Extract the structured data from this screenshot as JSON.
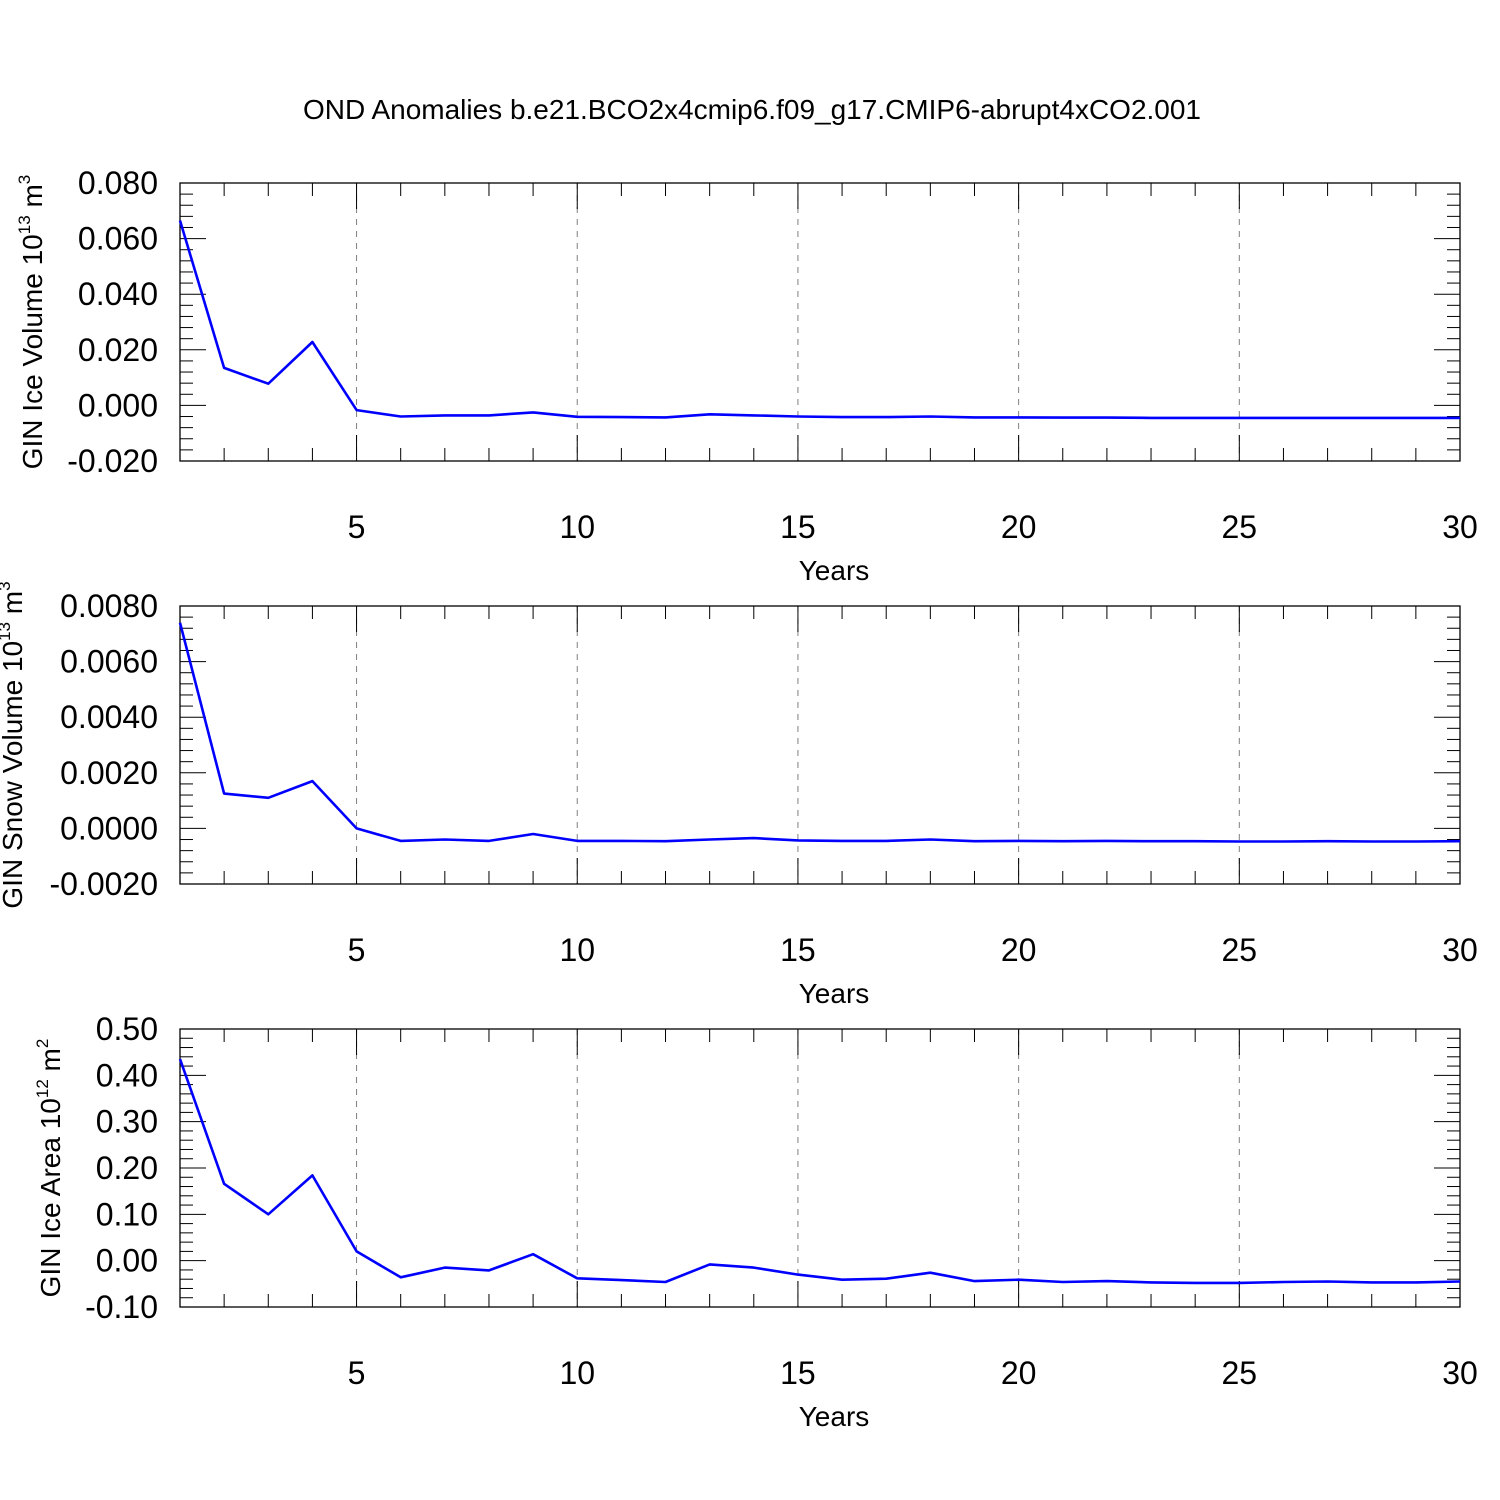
{
  "figure_title": "OND Anomalies b.e21.BCO2x4cmip6.f09_g17.CMIP6-abrupt4xCO2.001",
  "colors": {
    "line": "#0000ff",
    "axis": "#000000",
    "grid": "#808080"
  },
  "chart_data": [
    {
      "type": "line",
      "xlabel": "Years",
      "ylabel": {
        "base": "GIN Ice Volume 10",
        "sup1": "13",
        "mid": " m",
        "sup2": "3"
      },
      "xlim": [
        1,
        30
      ],
      "ylim": [
        -0.02,
        0.08
      ],
      "x_ticks": [
        5,
        10,
        15,
        20,
        25,
        30
      ],
      "y_ticks": [
        "-0.020",
        "0.000",
        "0.020",
        "0.040",
        "0.060",
        "0.080"
      ],
      "y_tick_values": [
        -0.02,
        0.0,
        0.02,
        0.04,
        0.06,
        0.08
      ],
      "grid": "dashed vertical at major x ticks",
      "series": [
        {
          "x": [
            1,
            2,
            3,
            4,
            5,
            6,
            7,
            8,
            9,
            10,
            11,
            12,
            13,
            14,
            15,
            16,
            17,
            18,
            19,
            20,
            21,
            22,
            23,
            24,
            25,
            26,
            27,
            28,
            29,
            30
          ],
          "values": [
            0.0665,
            0.0135,
            0.0078,
            0.0228,
            -0.0017,
            -0.004,
            -0.0036,
            -0.0036,
            -0.0025,
            -0.0041,
            -0.0042,
            -0.0043,
            -0.0032,
            -0.0036,
            -0.004,
            -0.0042,
            -0.0042,
            -0.004,
            -0.0043,
            -0.0043,
            -0.0044,
            -0.0044,
            -0.0045,
            -0.0045,
            -0.0045,
            -0.0045,
            -0.0045,
            -0.0045,
            -0.0045,
            -0.0045
          ]
        }
      ]
    },
    {
      "type": "line",
      "xlabel": "Years",
      "ylabel": {
        "base": "GIN Snow Volume 10",
        "sup1": "13",
        "mid": " m",
        "sup2": "3"
      },
      "xlim": [
        1,
        30
      ],
      "ylim": [
        -0.002,
        0.008
      ],
      "x_ticks": [
        5,
        10,
        15,
        20,
        25,
        30
      ],
      "y_ticks": [
        "-0.0020",
        "0.0000",
        "0.0020",
        "0.0040",
        "0.0060",
        "0.0080"
      ],
      "y_tick_values": [
        -0.002,
        0.0,
        0.002,
        0.004,
        0.006,
        0.008
      ],
      "grid": "dashed vertical at major x ticks",
      "series": [
        {
          "x": [
            1,
            2,
            3,
            4,
            5,
            6,
            7,
            8,
            9,
            10,
            11,
            12,
            13,
            14,
            15,
            16,
            17,
            18,
            19,
            20,
            21,
            22,
            23,
            24,
            25,
            26,
            27,
            28,
            29,
            30
          ],
          "values": [
            0.0074,
            0.00125,
            0.0011,
            0.0017,
            0.0,
            -0.00045,
            -0.0004,
            -0.00045,
            -0.0002,
            -0.00045,
            -0.00045,
            -0.00046,
            -0.0004,
            -0.00035,
            -0.00043,
            -0.00045,
            -0.00045,
            -0.0004,
            -0.00046,
            -0.00045,
            -0.00046,
            -0.00045,
            -0.00046,
            -0.00046,
            -0.00047,
            -0.00047,
            -0.00046,
            -0.00047,
            -0.00047,
            -0.00046
          ]
        }
      ]
    },
    {
      "type": "line",
      "xlabel": "Years",
      "ylabel": {
        "base": "GIN Ice Area 10",
        "sup1": "12",
        "mid": " m",
        "sup2": "2"
      },
      "xlim": [
        1,
        30
      ],
      "ylim": [
        -0.1,
        0.5
      ],
      "x_ticks": [
        5,
        10,
        15,
        20,
        25,
        30
      ],
      "y_ticks": [
        "-0.10",
        "0.00",
        "0.10",
        "0.20",
        "0.30",
        "0.40",
        "0.50"
      ],
      "y_tick_values": [
        -0.1,
        0.0,
        0.1,
        0.2,
        0.3,
        0.4,
        0.5
      ],
      "grid": "dashed vertical at major x ticks",
      "series": [
        {
          "x": [
            1,
            2,
            3,
            4,
            5,
            6,
            7,
            8,
            9,
            10,
            11,
            12,
            13,
            14,
            15,
            16,
            17,
            18,
            19,
            20,
            21,
            22,
            23,
            24,
            25,
            26,
            27,
            28,
            29,
            30
          ],
          "values": [
            0.435,
            0.166,
            0.1,
            0.184,
            0.02,
            -0.036,
            -0.015,
            -0.021,
            0.014,
            -0.038,
            -0.042,
            -0.046,
            -0.008,
            -0.015,
            -0.03,
            -0.041,
            -0.039,
            -0.026,
            -0.044,
            -0.041,
            -0.046,
            -0.044,
            -0.047,
            -0.048,
            -0.048,
            -0.046,
            -0.045,
            -0.047,
            -0.047,
            -0.045
          ]
        }
      ]
    }
  ]
}
